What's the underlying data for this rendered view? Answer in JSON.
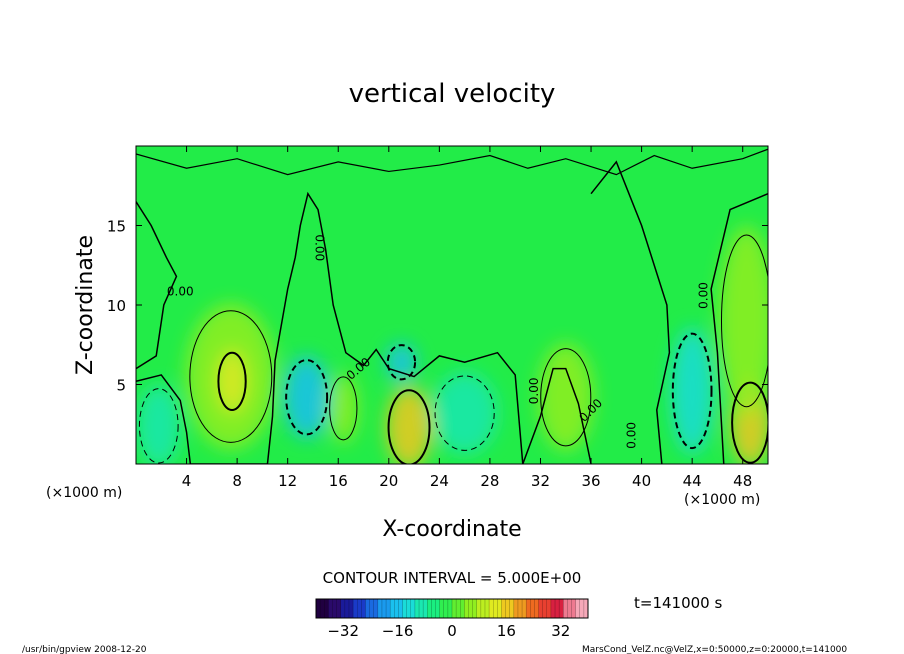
{
  "chart_data": {
    "type": "heatmap",
    "title": "vertical velocity",
    "xlabel": "X-coordinate",
    "ylabel": "Z-coordinate",
    "x_unit_left": "(×1000 m)",
    "x_unit_right": "(×1000 m)",
    "xlim": [
      0,
      50
    ],
    "ylim": [
      0,
      20
    ],
    "x_ticks": [
      4,
      8,
      12,
      16,
      20,
      24,
      28,
      32,
      36,
      40,
      44,
      48
    ],
    "y_ticks": [
      5,
      10,
      15
    ],
    "x_tick_labels": [
      "4",
      "8",
      "12",
      "16",
      "20",
      "24",
      "28",
      "32",
      "36",
      "40",
      "44",
      "48"
    ],
    "y_tick_labels": [
      "5",
      "10",
      "15"
    ],
    "contour_interval_text": "CONTOUR INTERVAL = 5.000E+00",
    "contour_labels": [
      "0.00",
      "0.00",
      "0.00",
      "0.00",
      "0.00",
      "0.00",
      "0.00"
    ],
    "colorbar": {
      "range": [
        -40,
        40
      ],
      "ticks": [
        -32,
        -16,
        0,
        16,
        32
      ],
      "tick_labels": [
        "−32",
        "−16",
        "0",
        "16",
        "32"
      ],
      "colors": [
        "#200040",
        "#2a0a6a",
        "#1a1a9a",
        "#1a3ac8",
        "#1a6ae0",
        "#1a9aee",
        "#1ac0ee",
        "#1adcd8",
        "#1ae8b0",
        "#1aee80",
        "#30ee50",
        "#60ee30",
        "#90ee20",
        "#bcee20",
        "#e0ea20",
        "#eec820",
        "#ee9a20",
        "#ee6a20",
        "#e84030",
        "#d82040",
        "#ee7a90",
        "#f6a8b8"
      ]
    },
    "time_label": "t=141000 s",
    "blobs": [
      {
        "x": 1.8,
        "z": 2.4,
        "rx": 1.7,
        "rz": 2.6,
        "value": -8
      },
      {
        "x": 7.5,
        "z": 5.5,
        "rx": 3.6,
        "rz": 4.6,
        "value": 7
      },
      {
        "x": 7.6,
        "z": 5.2,
        "rx": 1.2,
        "rz": 2.0,
        "value": 12
      },
      {
        "x": 13.5,
        "z": 4.2,
        "rx": 1.8,
        "rz": 2.6,
        "value": -16
      },
      {
        "x": 16.4,
        "z": 3.5,
        "rx": 1.2,
        "rz": 2.2,
        "value": 6
      },
      {
        "x": 21.6,
        "z": 2.3,
        "rx": 1.8,
        "rz": 2.6,
        "value": 15
      },
      {
        "x": 21.0,
        "z": 6.4,
        "rx": 1.2,
        "rz": 1.2,
        "value": -16
      },
      {
        "x": 26.0,
        "z": 3.2,
        "rx": 2.6,
        "rz": 2.6,
        "value": -8
      },
      {
        "x": 34.0,
        "z": 4.2,
        "rx": 2.2,
        "rz": 3.4,
        "value": 5
      },
      {
        "x": 44.0,
        "z": 4.6,
        "rx": 1.7,
        "rz": 4.0,
        "value": -12
      },
      {
        "x": 48.6,
        "z": 2.6,
        "rx": 1.6,
        "rz": 2.8,
        "value": 15
      },
      {
        "x": 48.3,
        "z": 9.0,
        "rx": 2.2,
        "rz": 6.0,
        "value": 4
      }
    ]
  },
  "footer": {
    "left_text": "/usr/bin/gpview  2008-12-20",
    "right_text": "MarsCond_VelZ.nc@VelZ,x=0:50000,z=0:20000,t=141000"
  }
}
